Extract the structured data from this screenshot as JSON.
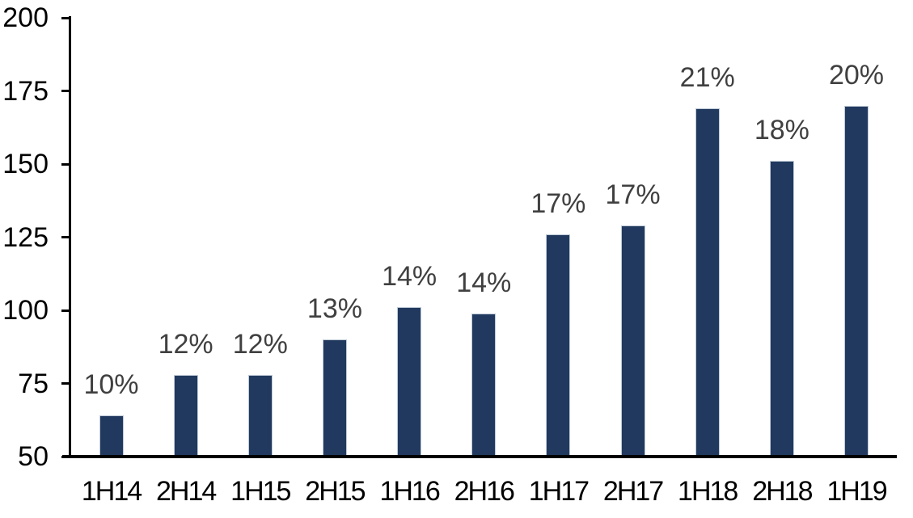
{
  "chart_data": {
    "type": "bar",
    "title": "",
    "xlabel": "",
    "ylabel": "",
    "categories": [
      "1H14",
      "2H14",
      "1H15",
      "2H15",
      "1H16",
      "2H16",
      "1H17",
      "2H17",
      "1H18",
      "2H18",
      "1H19"
    ],
    "values": [
      64,
      78,
      78,
      90,
      101,
      99,
      126,
      129,
      169,
      151,
      170
    ],
    "bar_labels": [
      "10%",
      "12%",
      "12%",
      "13%",
      "14%",
      "14%",
      "17%",
      "17%",
      "21%",
      "18%",
      "20%"
    ],
    "ylim": [
      50,
      200
    ],
    "yticks": [
      50,
      75,
      100,
      125,
      150,
      175,
      200
    ],
    "grid": false,
    "legend": false,
    "colors": {
      "bar_fill": "#21395E",
      "bar_border": "#bfcad7",
      "data_label": "#404040",
      "axis": "#000000",
      "tick_label": "#000000",
      "background": "#ffffff"
    }
  }
}
